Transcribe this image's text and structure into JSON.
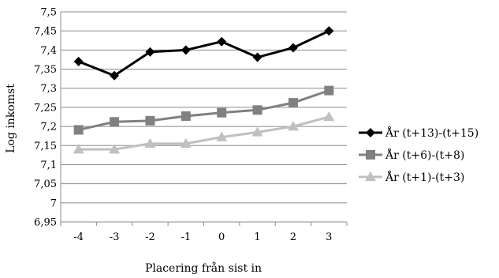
{
  "chart_data": {
    "type": "line",
    "title": "",
    "xlabel": "Placering från sist in",
    "ylabel": "Log inkomst",
    "categories": [
      "-4",
      "-3",
      "-2",
      "-1",
      "0",
      "1",
      "2",
      "3"
    ],
    "ylim": [
      6.95,
      7.5
    ],
    "yticks": [
      "6,95",
      "7",
      "7,05",
      "7,1",
      "7,15",
      "7,2",
      "7,25",
      "7,3",
      "7,35",
      "7,4",
      "7,45",
      "7,5"
    ],
    "grid": "horizontal",
    "legend_position": "right",
    "series": [
      {
        "name": "År (t+13)-(t+15)",
        "values": [
          7.37,
          7.333,
          7.395,
          7.4,
          7.422,
          7.381,
          7.406,
          7.45
        ],
        "color": "#000000",
        "marker": "diamond"
      },
      {
        "name": "År (t+6)-(t+8)",
        "values": [
          7.191,
          7.212,
          7.215,
          7.227,
          7.236,
          7.243,
          7.262,
          7.294
        ],
        "color": "#808080",
        "marker": "square"
      },
      {
        "name": "År (t+1)-(t+3)",
        "values": [
          7.14,
          7.14,
          7.155,
          7.155,
          7.172,
          7.185,
          7.2,
          7.225
        ],
        "color": "#c0c0c0",
        "marker": "triangle"
      }
    ]
  }
}
